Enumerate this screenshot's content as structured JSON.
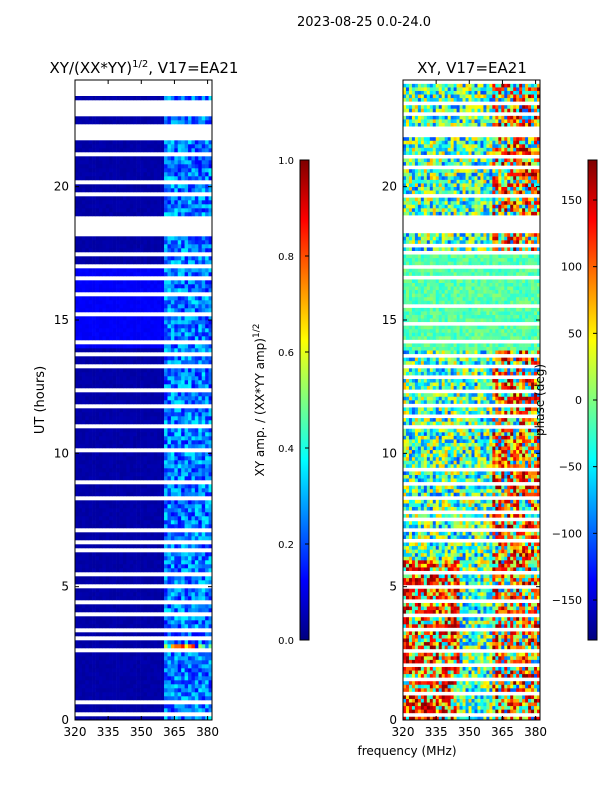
{
  "figure_title": "2023-08-25 0.0-24.0",
  "xlabel": "frequency (MHz)",
  "colors": {
    "jet": [
      "#00007f",
      "#0000ff",
      "#007fff",
      "#00ffff",
      "#7fff7f",
      "#ffff00",
      "#ff7f00",
      "#ff0000",
      "#7f0000"
    ],
    "flagged": "#ffffff"
  },
  "chart_data": [
    {
      "type": "heatmap",
      "panel": "amplitude",
      "title": "XY/(XX*YY)^{1/2}, V17=EA21",
      "title_main": "XY/(XX*YY)",
      "title_sup": "1/2",
      "title_suffix": ", V17=EA21",
      "xlabel": "",
      "ylabel": "UT (hours)",
      "xlim": [
        320,
        382
      ],
      "ylim": [
        0,
        24
      ],
      "xticks": [
        320,
        335,
        350,
        365,
        380
      ],
      "yticks": [
        0,
        5,
        10,
        15,
        20
      ],
      "colorbar": {
        "label_main": "XY amp. / (XX*YY amp)",
        "label_sup": "1/2",
        "range": [
          0.0,
          1.0
        ],
        "ticks": [
          "0.0",
          "0.2",
          "0.4",
          "0.6",
          "0.8",
          "1.0"
        ]
      },
      "description_values": {
        "low_band_level": 0.02,
        "high_band_level": 0.25
      }
    },
    {
      "type": "heatmap",
      "panel": "phase",
      "title": "XY, V17=EA21",
      "title_main": "XY, V17=EA21",
      "xlabel": "frequency (MHz)",
      "ylabel": "",
      "xlim": [
        320,
        382
      ],
      "ylim": [
        0,
        24
      ],
      "xticks": [
        320,
        335,
        350,
        365,
        380
      ],
      "yticks": [
        0,
        5,
        10,
        15,
        20
      ],
      "colorbar": {
        "label": "phase (deg)",
        "range": [
          -180,
          180
        ],
        "ticks": [
          "150",
          "100",
          "50",
          "0",
          "−50",
          "−100",
          "−150"
        ],
        "tick_values": [
          150,
          100,
          50,
          0,
          -50,
          -100,
          -150
        ]
      }
    }
  ]
}
